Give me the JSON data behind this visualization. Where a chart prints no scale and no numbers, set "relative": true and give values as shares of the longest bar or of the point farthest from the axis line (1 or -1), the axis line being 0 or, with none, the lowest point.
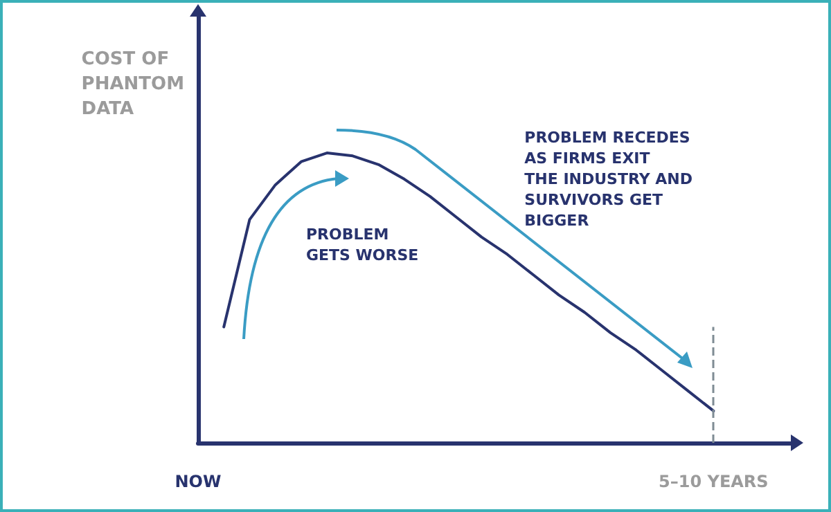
{
  "chart_data": {
    "type": "line",
    "relative": true,
    "ylabel": "COST OF PHANTOM DATA",
    "categories": [
      "NOW",
      null,
      null,
      null,
      null,
      null,
      null,
      null,
      null,
      null,
      null,
      null,
      null,
      null,
      null,
      null,
      null,
      null,
      null,
      null,
      "5–10 YEARS",
      null,
      null,
      null
    ],
    "series": [
      {
        "color": "#28336e",
        "values": [
          null,
          0.4,
          0.77,
          0.89,
          0.97,
          1.0,
          0.99,
          0.96,
          0.91,
          0.85,
          0.78,
          0.71,
          0.65,
          0.58,
          0.51,
          0.45,
          0.38,
          0.32,
          0.25,
          0.18,
          0.11,
          null,
          null,
          null
        ]
      }
    ],
    "ref_lines": [
      {
        "axis": "x",
        "value": "5–10 YEARS",
        "color": "#7f8c94",
        "line_style": "dashed"
      }
    ],
    "annotations": [
      "PROBLEM GETS WORSE",
      "PROBLEM RECEDES AS FIRMS EXIT THE INDUSTRY AND SURVIVORS GET BIGGER"
    ],
    "grid": false,
    "marker": "none",
    "line_style": "solid"
  }
}
